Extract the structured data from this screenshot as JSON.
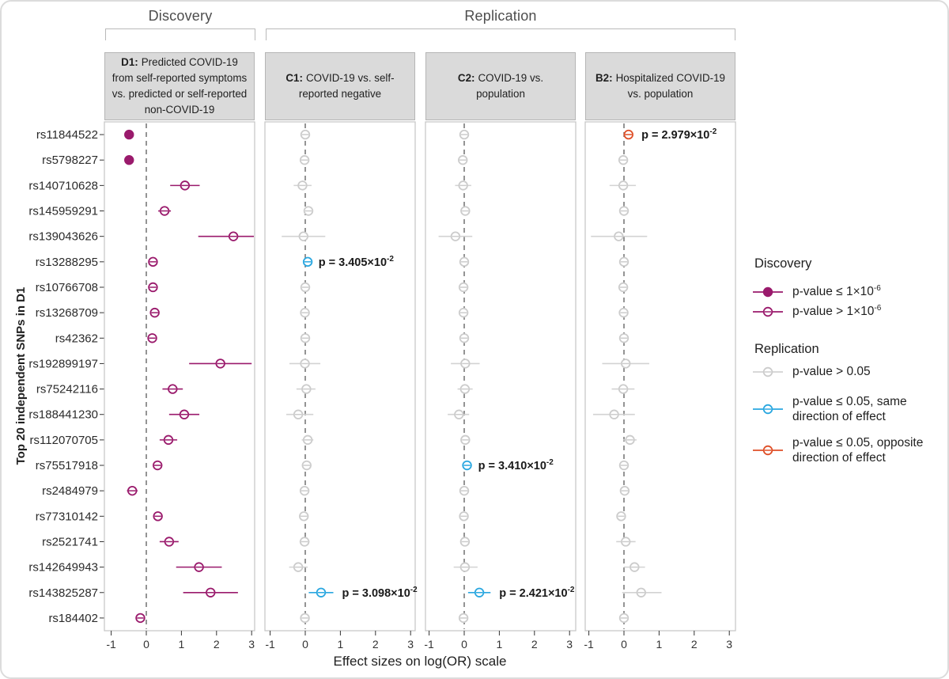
{
  "figure": {
    "discovery_group": "Discovery",
    "replication_group": "Replication",
    "xlabel": "Effect sizes on log(OR) scale",
    "ylabel_prefix": "Top 20 independent SNPs in ",
    "ylabel_bold": "D1"
  },
  "panels": [
    {
      "key": "D1",
      "prefix": "D1:",
      "title": "Predicted COVID-19 from self-reported symptoms vs. predicted or self-reported non-COVID-19"
    },
    {
      "key": "C1",
      "prefix": "C1:",
      "title": "COVID-19 vs. self-reported negative"
    },
    {
      "key": "C2",
      "prefix": "C2:",
      "title": "COVID-19 vs. population"
    },
    {
      "key": "B2",
      "prefix": "B2:",
      "title": "Hospitalized COVID-19 vs. population"
    }
  ],
  "legend": {
    "discovery_title": "Discovery",
    "replication_title": "Replication",
    "entries": [
      {
        "style": "disc_sig",
        "base": "p-value ≤ 1×10",
        "exp": "-6"
      },
      {
        "style": "disc_ns",
        "base": "p-value > 1×10",
        "exp": "-6"
      },
      {
        "style": "rep_ns",
        "base": "p-value > 0.05",
        "exp": null
      },
      {
        "style": "rep_same",
        "base": "p-value ≤ 0.05, same direction of effect",
        "exp": null
      },
      {
        "style": "rep_opp",
        "base": "p-value ≤ 0.05, opposite direction of effect",
        "exp": null
      }
    ]
  },
  "chart_data": {
    "type": "forest",
    "xlabel": "Effect sizes on log(OR) scale",
    "x_ticks": [
      -1,
      0,
      1,
      2,
      3
    ],
    "xlim": [
      -1.2,
      3.2
    ],
    "grid": false,
    "zero_line": "dashed",
    "snps": [
      "rs11844522",
      "rs5798227",
      "rs140710628",
      "rs145959291",
      "rs139043626",
      "rs13288295",
      "rs10766708",
      "rs13268709",
      "rs42362",
      "rs192899197",
      "rs75242116",
      "rs188441230",
      "rs112070705",
      "rs75517918",
      "rs2484979",
      "rs77310142",
      "rs2521741",
      "rs142649943",
      "rs143825287",
      "rs184402"
    ],
    "styles": {
      "disc_sig": {
        "color": "#9a1a6c",
        "filled": true,
        "label": "Discovery p-value ≤ 1×10-6"
      },
      "disc_ns": {
        "color": "#9a1a6c",
        "filled": false,
        "label": "Discovery p-value > 1×10-6"
      },
      "rep_ns": {
        "color": "#cccccc",
        "filled": false,
        "label": "Replication p-value > 0.05"
      },
      "rep_same": {
        "color": "#2aa7e0",
        "filled": false,
        "label": "Replication p-value ≤ 0.05, same direction"
      },
      "rep_opp": {
        "color": "#df4f27",
        "filled": false,
        "label": "Replication p-value ≤ 0.05, opposite direction"
      }
    },
    "panels": [
      {
        "id": "D1",
        "points": [
          {
            "est": -0.49,
            "lo": -0.58,
            "hi": -0.4,
            "style": "disc_sig",
            "p_label": null
          },
          {
            "est": -0.49,
            "lo": -0.58,
            "hi": -0.4,
            "style": "disc_sig",
            "p_label": null
          },
          {
            "est": 1.1,
            "lo": 0.68,
            "hi": 1.52,
            "style": "disc_ns",
            "p_label": null
          },
          {
            "est": 0.52,
            "lo": 0.34,
            "hi": 0.7,
            "style": "disc_ns",
            "p_label": null
          },
          {
            "est": 2.48,
            "lo": 1.48,
            "hi": 3.2,
            "style": "disc_ns",
            "p_label": null
          },
          {
            "est": 0.19,
            "lo": 0.1,
            "hi": 0.28,
            "style": "disc_ns",
            "p_label": null
          },
          {
            "est": 0.19,
            "lo": 0.1,
            "hi": 0.28,
            "style": "disc_ns",
            "p_label": null
          },
          {
            "est": 0.24,
            "lo": 0.14,
            "hi": 0.34,
            "style": "disc_ns",
            "p_label": null
          },
          {
            "est": 0.17,
            "lo": 0.08,
            "hi": 0.26,
            "style": "disc_ns",
            "p_label": null
          },
          {
            "est": 2.11,
            "lo": 1.22,
            "hi": 3.0,
            "style": "disc_ns",
            "p_label": null
          },
          {
            "est": 0.75,
            "lo": 0.46,
            "hi": 1.04,
            "style": "disc_ns",
            "p_label": null
          },
          {
            "est": 1.08,
            "lo": 0.65,
            "hi": 1.51,
            "style": "disc_ns",
            "p_label": null
          },
          {
            "est": 0.63,
            "lo": 0.38,
            "hi": 0.88,
            "style": "disc_ns",
            "p_label": null
          },
          {
            "est": 0.32,
            "lo": 0.2,
            "hi": 0.44,
            "style": "disc_ns",
            "p_label": null
          },
          {
            "est": -0.4,
            "lo": -0.55,
            "hi": -0.25,
            "style": "disc_ns",
            "p_label": null
          },
          {
            "est": 0.33,
            "lo": 0.21,
            "hi": 0.45,
            "style": "disc_ns",
            "p_label": null
          },
          {
            "est": 0.65,
            "lo": 0.38,
            "hi": 0.92,
            "style": "disc_ns",
            "p_label": null
          },
          {
            "est": 1.5,
            "lo": 0.85,
            "hi": 2.15,
            "style": "disc_ns",
            "p_label": null
          },
          {
            "est": 1.83,
            "lo": 1.05,
            "hi": 2.61,
            "style": "disc_ns",
            "p_label": null
          },
          {
            "est": -0.17,
            "lo": -0.26,
            "hi": -0.08,
            "style": "disc_ns",
            "p_label": null
          }
        ]
      },
      {
        "id": "C1",
        "points": [
          {
            "est": 0.0,
            "lo": -0.08,
            "hi": 0.08,
            "style": "rep_ns",
            "p_label": null
          },
          {
            "est": -0.02,
            "lo": -0.1,
            "hi": 0.06,
            "style": "rep_ns",
            "p_label": null
          },
          {
            "est": -0.08,
            "lo": -0.33,
            "hi": 0.18,
            "style": "rep_ns",
            "p_label": null
          },
          {
            "est": 0.09,
            "lo": 0.02,
            "hi": 0.16,
            "style": "rep_ns",
            "p_label": null
          },
          {
            "est": -0.05,
            "lo": -0.67,
            "hi": 0.57,
            "style": "rep_ns",
            "p_label": null
          },
          {
            "est": 0.07,
            "lo": 0.01,
            "hi": 0.13,
            "style": "rep_same",
            "p_label": {
              "base": "p = 3.405×10",
              "exp": "-2"
            }
          },
          {
            "est": 0.0,
            "lo": -0.06,
            "hi": 0.06,
            "style": "rep_ns",
            "p_label": null
          },
          {
            "est": -0.01,
            "lo": -0.08,
            "hi": 0.06,
            "style": "rep_ns",
            "p_label": null
          },
          {
            "est": 0.0,
            "lo": -0.06,
            "hi": 0.06,
            "style": "rep_ns",
            "p_label": null
          },
          {
            "est": -0.01,
            "lo": -0.45,
            "hi": 0.43,
            "style": "rep_ns",
            "p_label": null
          },
          {
            "est": 0.03,
            "lo": -0.25,
            "hi": 0.29,
            "style": "rep_ns",
            "p_label": null
          },
          {
            "est": -0.2,
            "lo": -0.54,
            "hi": 0.23,
            "style": "rep_ns",
            "p_label": null
          },
          {
            "est": 0.07,
            "lo": -0.1,
            "hi": 0.23,
            "style": "rep_ns",
            "p_label": null
          },
          {
            "est": 0.04,
            "lo": -0.04,
            "hi": 0.12,
            "style": "rep_ns",
            "p_label": null
          },
          {
            "est": -0.02,
            "lo": -0.12,
            "hi": 0.08,
            "style": "rep_ns",
            "p_label": null
          },
          {
            "est": -0.04,
            "lo": -0.14,
            "hi": 0.06,
            "style": "rep_ns",
            "p_label": null
          },
          {
            "est": -0.02,
            "lo": -0.16,
            "hi": 0.12,
            "style": "rep_ns",
            "p_label": null
          },
          {
            "est": -0.2,
            "lo": -0.46,
            "hi": 0.07,
            "style": "rep_ns",
            "p_label": null
          },
          {
            "est": 0.45,
            "lo": 0.1,
            "hi": 0.8,
            "style": "rep_same",
            "p_label": {
              "base": "p = 3.098×10",
              "exp": "-2"
            }
          },
          {
            "est": -0.01,
            "lo": -0.09,
            "hi": 0.07,
            "style": "rep_ns",
            "p_label": null
          }
        ]
      },
      {
        "id": "C2",
        "points": [
          {
            "est": 0.0,
            "lo": -0.07,
            "hi": 0.07,
            "style": "rep_ns",
            "p_label": null
          },
          {
            "est": -0.04,
            "lo": -0.11,
            "hi": 0.03,
            "style": "rep_ns",
            "p_label": null
          },
          {
            "est": -0.03,
            "lo": -0.26,
            "hi": 0.2,
            "style": "rep_ns",
            "p_label": null
          },
          {
            "est": 0.03,
            "lo": -0.04,
            "hi": 0.1,
            "style": "rep_ns",
            "p_label": null
          },
          {
            "est": -0.25,
            "lo": -0.73,
            "hi": 0.23,
            "style": "rep_ns",
            "p_label": null
          },
          {
            "est": 0.0,
            "lo": -0.06,
            "hi": 0.06,
            "style": "rep_ns",
            "p_label": null
          },
          {
            "est": -0.02,
            "lo": -0.08,
            "hi": 0.04,
            "style": "rep_ns",
            "p_label": null
          },
          {
            "est": -0.02,
            "lo": -0.09,
            "hi": 0.05,
            "style": "rep_ns",
            "p_label": null
          },
          {
            "est": 0.0,
            "lo": -0.06,
            "hi": 0.06,
            "style": "rep_ns",
            "p_label": null
          },
          {
            "est": 0.03,
            "lo": -0.38,
            "hi": 0.44,
            "style": "rep_ns",
            "p_label": null
          },
          {
            "est": 0.02,
            "lo": -0.19,
            "hi": 0.24,
            "style": "rep_ns",
            "p_label": null
          },
          {
            "est": -0.15,
            "lo": -0.47,
            "hi": 0.14,
            "style": "rep_ns",
            "p_label": null
          },
          {
            "est": 0.03,
            "lo": -0.08,
            "hi": 0.12,
            "style": "rep_ns",
            "p_label": null
          },
          {
            "est": 0.08,
            "lo": 0.01,
            "hi": 0.15,
            "style": "rep_same",
            "p_label": {
              "base": "p = 3.410×10",
              "exp": "-2"
            }
          },
          {
            "est": 0.0,
            "lo": -0.07,
            "hi": 0.07,
            "style": "rep_ns",
            "p_label": null
          },
          {
            "est": -0.01,
            "lo": -0.08,
            "hi": 0.06,
            "style": "rep_ns",
            "p_label": null
          },
          {
            "est": 0.02,
            "lo": -0.09,
            "hi": 0.13,
            "style": "rep_ns",
            "p_label": null
          },
          {
            "est": 0.02,
            "lo": -0.3,
            "hi": 0.38,
            "style": "rep_ns",
            "p_label": null
          },
          {
            "est": 0.43,
            "lo": 0.11,
            "hi": 0.75,
            "style": "rep_same",
            "p_label": {
              "base": "p = 2.421×10",
              "exp": "-2"
            }
          },
          {
            "est": -0.02,
            "lo": -0.09,
            "hi": 0.05,
            "style": "rep_ns",
            "p_label": null
          }
        ]
      },
      {
        "id": "B2",
        "points": [
          {
            "est": 0.13,
            "lo": 0.01,
            "hi": 0.25,
            "style": "rep_opp",
            "p_label": {
              "base": "p = 2.979×10",
              "exp": "-2"
            }
          },
          {
            "est": -0.02,
            "lo": -0.12,
            "hi": 0.08,
            "style": "rep_ns",
            "p_label": null
          },
          {
            "est": -0.02,
            "lo": -0.41,
            "hi": 0.34,
            "style": "rep_ns",
            "p_label": null
          },
          {
            "est": 0.0,
            "lo": -0.1,
            "hi": 0.1,
            "style": "rep_ns",
            "p_label": null
          },
          {
            "est": -0.15,
            "lo": -0.94,
            "hi": 0.66,
            "style": "rep_ns",
            "p_label": null
          },
          {
            "est": 0.0,
            "lo": -0.1,
            "hi": 0.1,
            "style": "rep_ns",
            "p_label": null
          },
          {
            "est": -0.02,
            "lo": -0.12,
            "hi": 0.08,
            "style": "rep_ns",
            "p_label": null
          },
          {
            "est": -0.01,
            "lo": -0.11,
            "hi": 0.09,
            "style": "rep_ns",
            "p_label": null
          },
          {
            "est": 0.0,
            "lo": -0.1,
            "hi": 0.1,
            "style": "rep_ns",
            "p_label": null
          },
          {
            "est": 0.05,
            "lo": -0.62,
            "hi": 0.72,
            "style": "rep_ns",
            "p_label": null
          },
          {
            "est": -0.02,
            "lo": -0.35,
            "hi": 0.3,
            "style": "rep_ns",
            "p_label": null
          },
          {
            "est": -0.28,
            "lo": -0.88,
            "hi": 0.31,
            "style": "rep_ns",
            "p_label": null
          },
          {
            "est": 0.17,
            "lo": -0.02,
            "hi": 0.36,
            "style": "rep_ns",
            "p_label": null
          },
          {
            "est": 0.0,
            "lo": -0.1,
            "hi": 0.1,
            "style": "rep_ns",
            "p_label": null
          },
          {
            "est": 0.02,
            "lo": -0.08,
            "hi": 0.12,
            "style": "rep_ns",
            "p_label": null
          },
          {
            "est": -0.08,
            "lo": -0.2,
            "hi": 0.04,
            "style": "rep_ns",
            "p_label": null
          },
          {
            "est": 0.05,
            "lo": -0.22,
            "hi": 0.33,
            "style": "rep_ns",
            "p_label": null
          },
          {
            "est": 0.3,
            "lo": 0.0,
            "hi": 0.6,
            "style": "rep_ns",
            "p_label": null
          },
          {
            "est": 0.49,
            "lo": -0.05,
            "hi": 1.07,
            "style": "rep_ns",
            "p_label": null
          },
          {
            "est": 0.0,
            "lo": -0.08,
            "hi": 0.08,
            "style": "rep_ns",
            "p_label": null
          }
        ]
      }
    ]
  }
}
